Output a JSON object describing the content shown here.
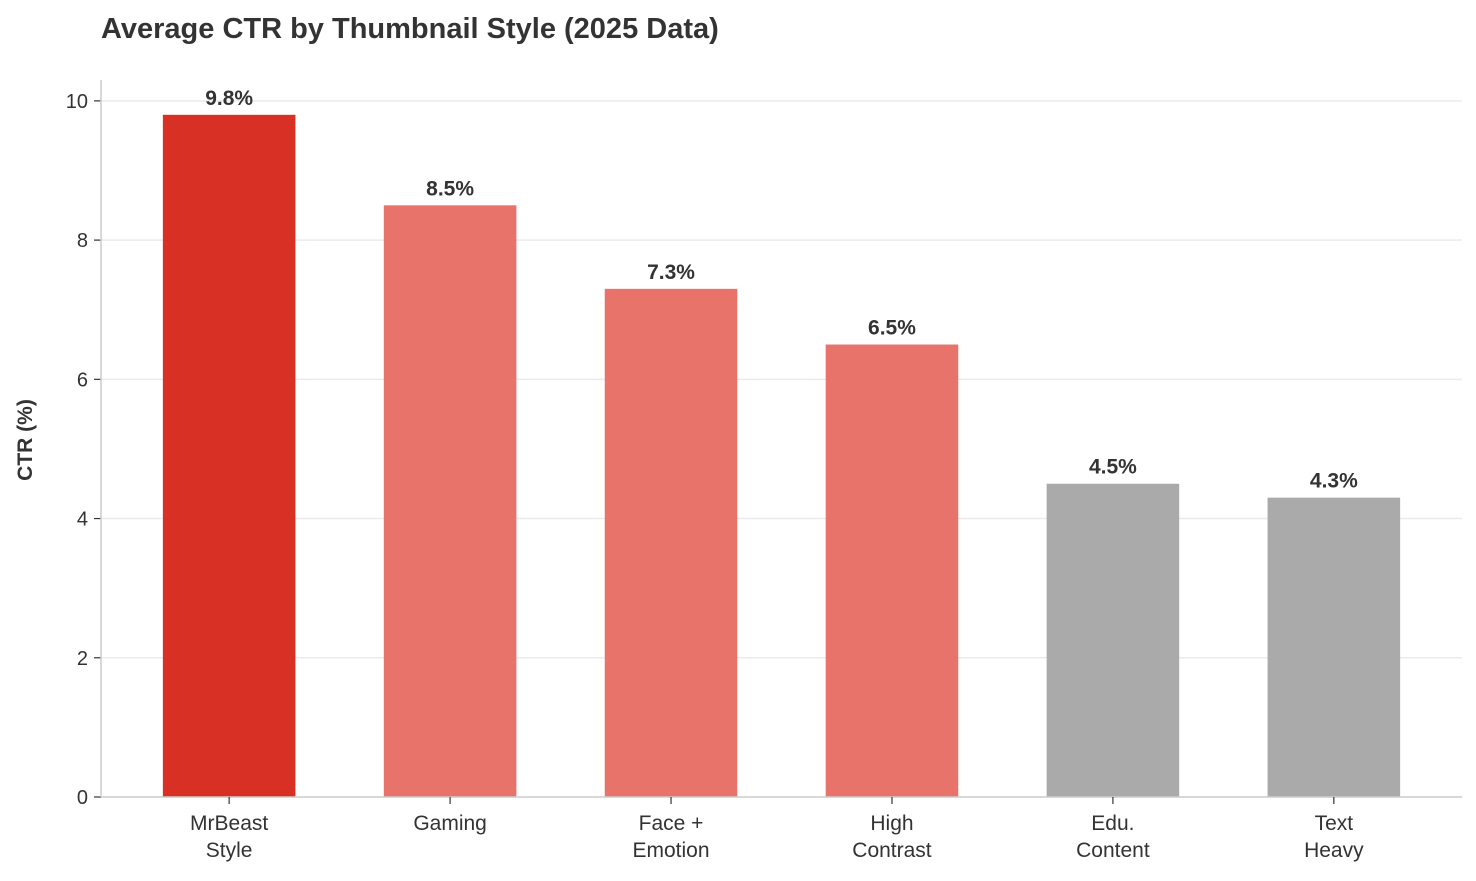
{
  "chart_data": {
    "type": "bar",
    "title": "Average CTR by Thumbnail Style (2025 Data)",
    "xlabel": "",
    "ylabel": "CTR (%)",
    "categories": [
      [
        "MrBeast",
        "Style"
      ],
      [
        "Gaming"
      ],
      [
        "Face +",
        "Emotion"
      ],
      [
        "High",
        "Contrast"
      ],
      [
        "Edu.",
        "Content"
      ],
      [
        "Text",
        "Heavy"
      ]
    ],
    "values": [
      9.8,
      8.5,
      7.3,
      6.5,
      4.5,
      4.3
    ],
    "data_labels": [
      "9.8%",
      "8.5%",
      "7.3%",
      "6.5%",
      "4.5%",
      "4.3%"
    ],
    "bar_colors": [
      "#D93025",
      "#E8736A",
      "#E8736A",
      "#E8736A",
      "#AAAAAA",
      "#AAAAAA"
    ],
    "ylim": [
      0,
      10.3
    ],
    "yticks": [
      0,
      2,
      4,
      6,
      8,
      10
    ],
    "grid": "horizontal",
    "legend": "none"
  }
}
